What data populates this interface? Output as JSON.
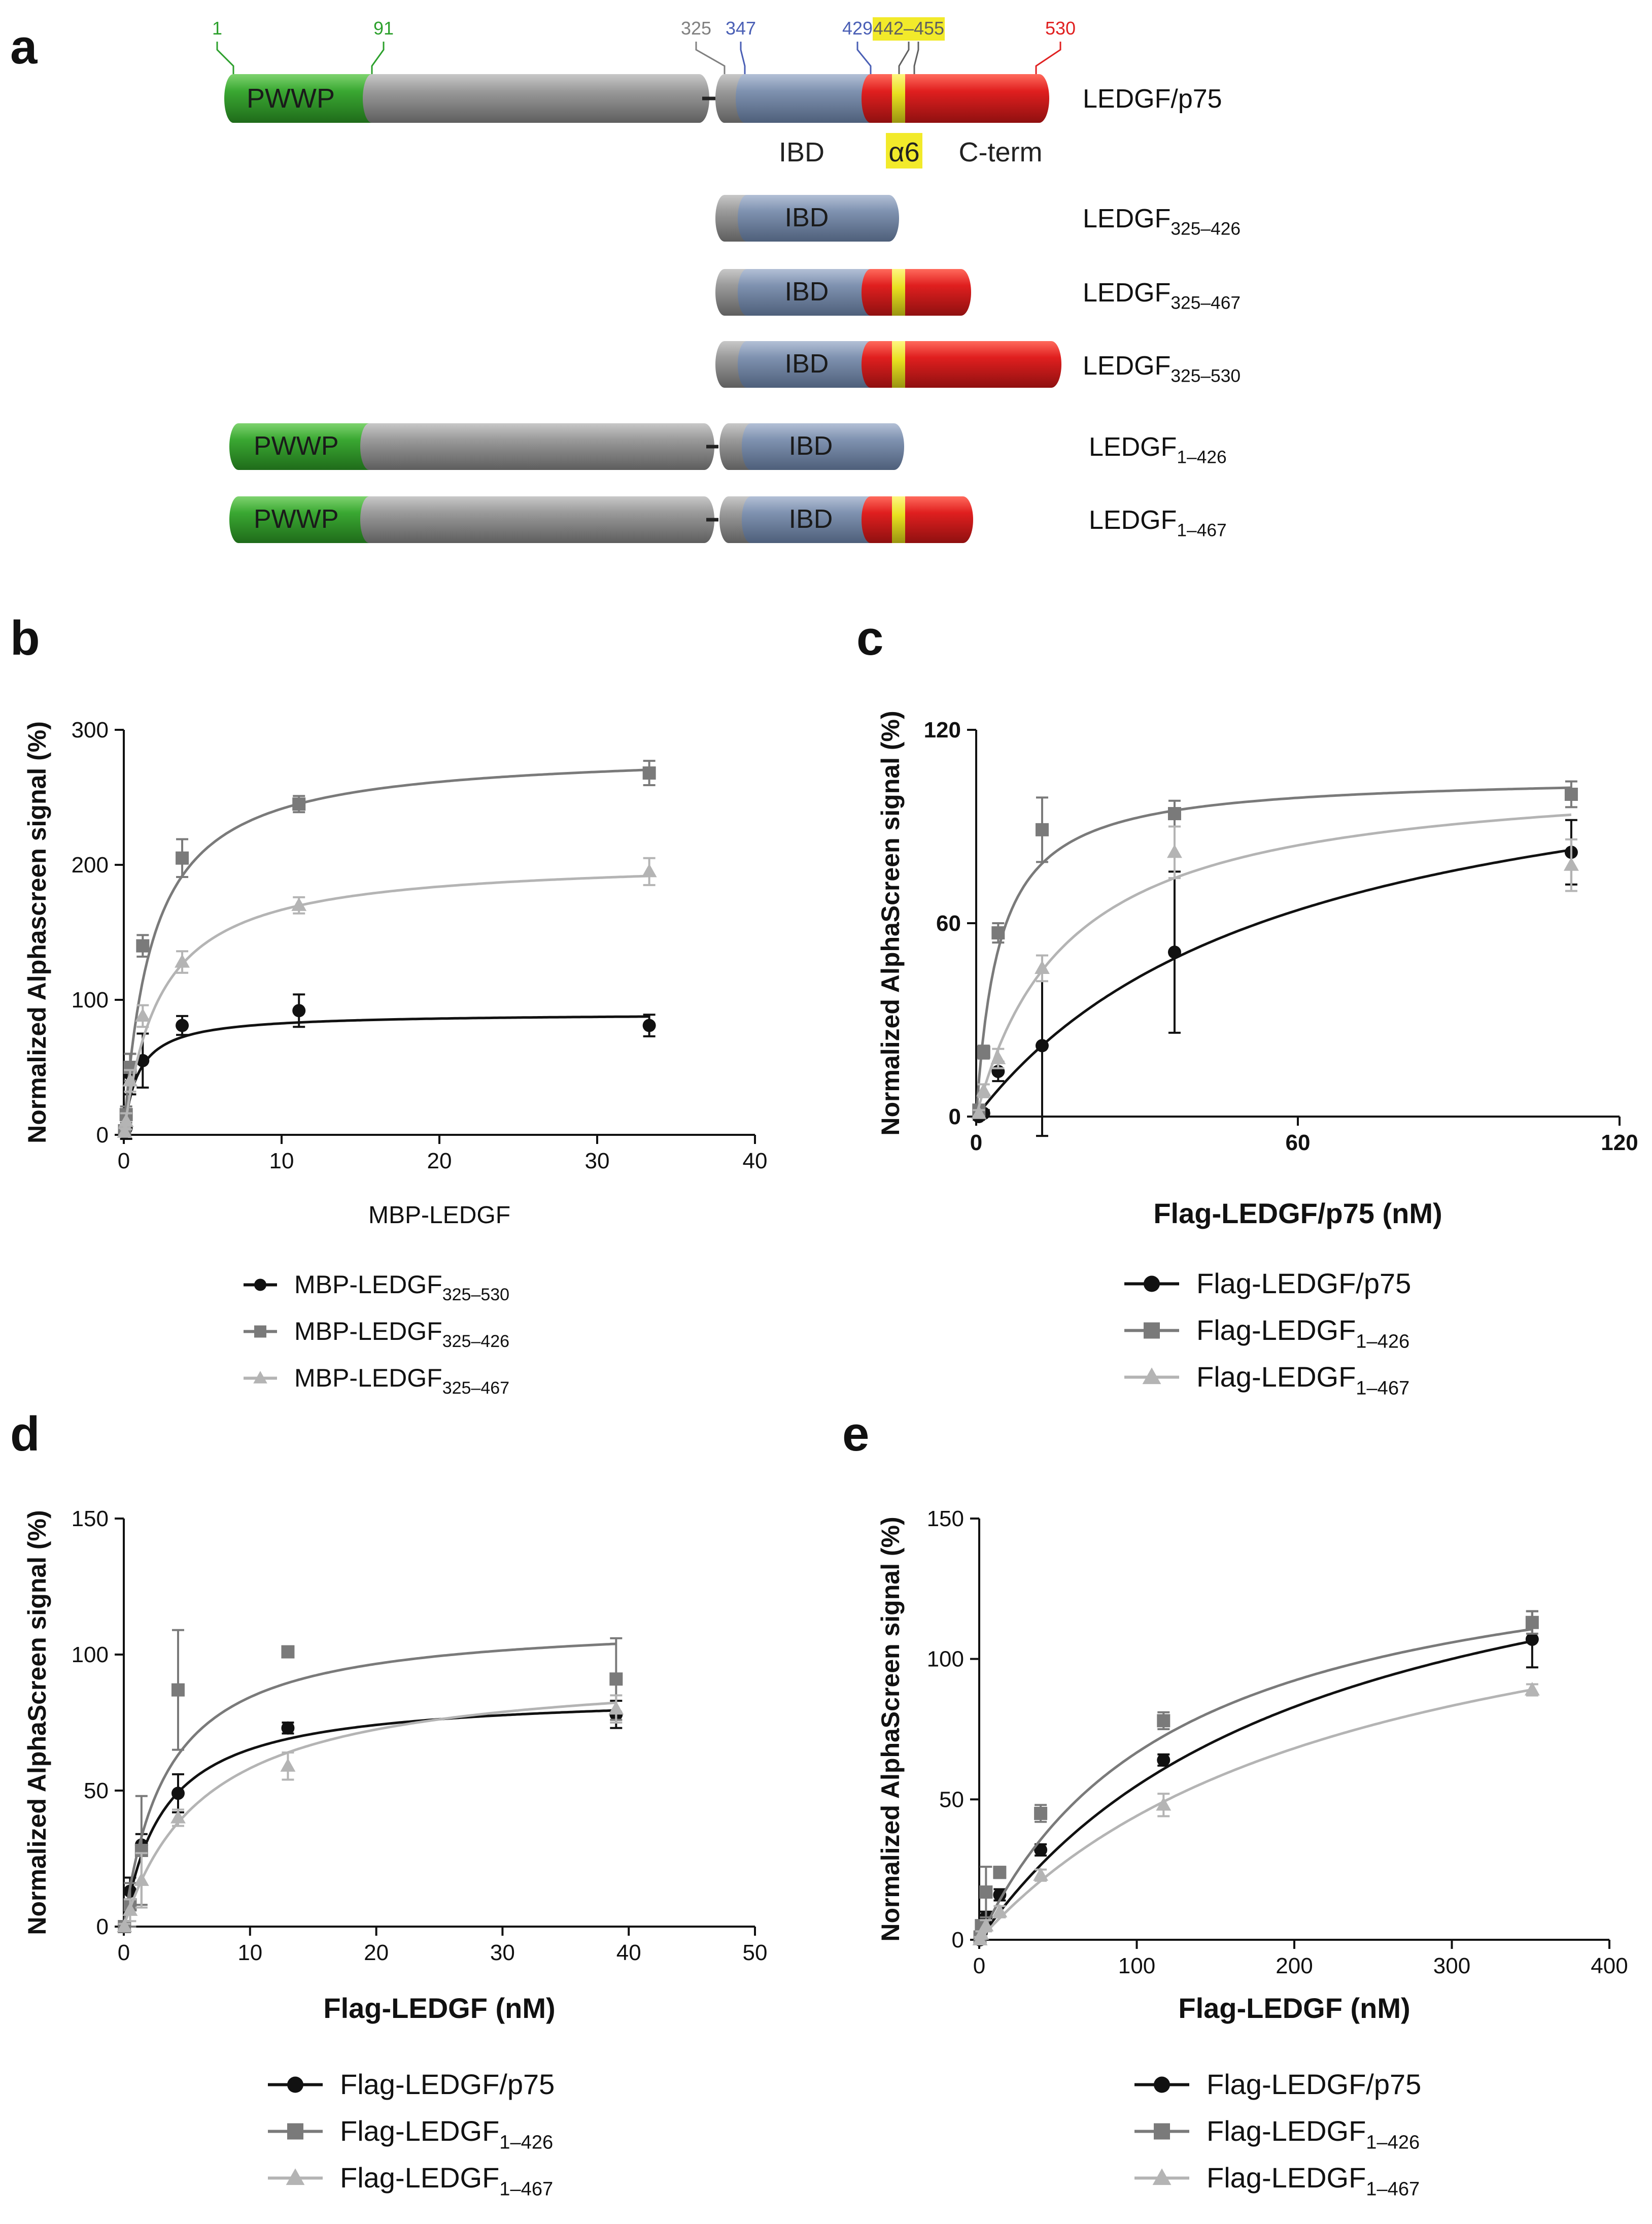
{
  "panel_a": {
    "label": "a",
    "markers": [
      {
        "text": "1",
        "color": "#2ca02c"
      },
      {
        "text": "91",
        "color": "#2ca02c"
      },
      {
        "text": "325",
        "color": "#808080"
      },
      {
        "text": "347",
        "color": "#4a5fb5"
      },
      {
        "text": "429",
        "color": "#4a5fb5"
      },
      {
        "text": "442–455",
        "color": "#606060"
      },
      {
        "text": "530",
        "color": "#e02020"
      }
    ],
    "domain_labels": {
      "pwwp": "PWWP",
      "ibd": "IBD",
      "alpha6": "α6",
      "cterm": "C-term"
    },
    "constructs": [
      {
        "name": "LEDGF/p75",
        "sub": ""
      },
      {
        "name": "LEDGF",
        "sub": "325–426"
      },
      {
        "name": "LEDGF",
        "sub": "325–467"
      },
      {
        "name": "LEDGF",
        "sub": "325–530"
      },
      {
        "name": "LEDGF",
        "sub": "1–426"
      },
      {
        "name": "LEDGF",
        "sub": "1–467"
      }
    ],
    "colors": {
      "pwwp": "#3aa832",
      "linker": "#9a9a9a",
      "ibd": "#7f92b0",
      "cterm": "#e01f1f",
      "alpha6": "#e8e020",
      "highlight": "#f2ea2a"
    }
  },
  "chart_data": [
    {
      "panel": "b",
      "type": "scatter",
      "xlabel": "MBP-LEDGF",
      "ylabel": "Normalized Alphascreen signal (%)",
      "xlim": [
        0,
        40
      ],
      "ylim": [
        0,
        300
      ],
      "xticks": [
        0,
        10,
        20,
        30,
        40
      ],
      "yticks": [
        0,
        100,
        200,
        300
      ],
      "series": [
        {
          "name": "MBP-LEDGF",
          "sub": "325–530",
          "color": "#111111",
          "marker": "circle",
          "x": [
            0.05,
            0.15,
            0.4,
            1.2,
            3.7,
            11.1,
            33.3
          ],
          "y": [
            2,
            5,
            45,
            55,
            81,
            92,
            81
          ],
          "err": [
            3,
            8,
            15,
            20,
            7,
            12,
            8
          ],
          "fit": {
            "bmax": 90,
            "kd": 0.9
          }
        },
        {
          "name": "MBP-LEDGF",
          "sub": "325–426",
          "color": "#7a7a7a",
          "marker": "square",
          "x": [
            0.05,
            0.15,
            0.4,
            1.2,
            3.7,
            11.1,
            33.3
          ],
          "y": [
            3,
            15,
            50,
            140,
            205,
            245,
            268
          ],
          "err": [
            3,
            6,
            10,
            8,
            14,
            6,
            9
          ],
          "fit": {
            "bmax": 285,
            "kd": 1.8
          }
        },
        {
          "name": "MBP-LEDGF",
          "sub": "325–467",
          "color": "#b4b4b4",
          "marker": "triangle",
          "x": [
            0.05,
            0.15,
            0.4,
            1.2,
            3.7,
            11.1,
            33.3
          ],
          "y": [
            2,
            10,
            40,
            88,
            128,
            170,
            195
          ],
          "err": [
            3,
            6,
            8,
            8,
            8,
            6,
            10
          ],
          "fit": {
            "bmax": 205,
            "kd": 2.3
          }
        }
      ]
    },
    {
      "panel": "c",
      "type": "scatter",
      "xlabel": "Flag-LEDGF/p75 (nM)",
      "ylabel": "Normalized AlphaScreen signal (%)",
      "xlim": [
        0,
        120
      ],
      "ylim": [
        0,
        120
      ],
      "xticks": [
        0,
        60,
        120
      ],
      "yticks": [
        0,
        60,
        120
      ],
      "series": [
        {
          "name": "Flag-LEDGF/p75",
          "sub": "",
          "color": "#111111",
          "marker": "circle",
          "x": [
            0.5,
            1.4,
            4.1,
            12.3,
            37,
            111
          ],
          "y": [
            0,
            1,
            14,
            22,
            51,
            82
          ],
          "err": [
            1,
            1,
            3,
            28,
            25,
            10
          ],
          "fit": {
            "bmax": 126,
            "kd": 58
          }
        },
        {
          "name": "Flag-LEDGF",
          "sub": "1–426",
          "color": "#7a7a7a",
          "marker": "square",
          "x": [
            0.5,
            1.4,
            4.1,
            12.3,
            37,
            111
          ],
          "y": [
            2,
            20,
            57,
            89,
            94,
            100
          ],
          "err": [
            1,
            2,
            3,
            10,
            4,
            4
          ],
          "fit": {
            "bmax": 106,
            "kd": 4.3
          }
        },
        {
          "name": "Flag-LEDGF",
          "sub": "1–467",
          "color": "#b4b4b4",
          "marker": "triangle",
          "x": [
            0.5,
            1.4,
            4.1,
            12.3,
            37,
            111
          ],
          "y": [
            1,
            8,
            18,
            46,
            82,
            78
          ],
          "err": [
            1,
            2,
            3,
            4,
            8,
            8
          ],
          "fit": {
            "bmax": 108,
            "kd": 17
          }
        }
      ]
    },
    {
      "panel": "d",
      "type": "scatter",
      "xlabel": "Flag-LEDGF (nM)",
      "ylabel": "Normalized AlphaScreen signal (%)",
      "xlim": [
        0,
        50
      ],
      "ylim": [
        0,
        150
      ],
      "xticks": [
        0,
        10,
        20,
        30,
        40,
        50
      ],
      "yticks": [
        0,
        50,
        100,
        150
      ],
      "series": [
        {
          "name": "Flag-LEDGF/p75",
          "sub": "",
          "color": "#111111",
          "marker": "circle",
          "x": [
            0.05,
            0.5,
            1.4,
            4.3,
            13,
            39
          ],
          "y": [
            0,
            13,
            30,
            49,
            73,
            78
          ],
          "err": [
            1,
            5,
            4,
            7,
            2,
            5
          ],
          "fit": {
            "bmax": 86,
            "kd": 3.2
          }
        },
        {
          "name": "Flag-LEDGF",
          "sub": "1–426",
          "color": "#7a7a7a",
          "marker": "square",
          "x": [
            0.05,
            0.5,
            1.4,
            4.3,
            13,
            39
          ],
          "y": [
            0,
            8,
            28,
            87,
            101,
            91
          ],
          "err": [
            1,
            8,
            20,
            22,
            2,
            15
          ],
          "fit": {
            "bmax": 113,
            "kd": 3.4
          }
        },
        {
          "name": "Flag-LEDGF",
          "sub": "1–467",
          "color": "#b4b4b4",
          "marker": "triangle",
          "x": [
            0.05,
            0.5,
            1.4,
            4.3,
            13,
            39
          ],
          "y": [
            0,
            6,
            17,
            40,
            59,
            80
          ],
          "err": [
            1,
            4,
            10,
            3,
            5,
            5
          ],
          "fit": {
            "bmax": 96,
            "kd": 6.5
          }
        }
      ]
    },
    {
      "panel": "e",
      "type": "scatter",
      "xlabel": "Flag-LEDGF (nM)",
      "ylabel": "Normalized AlphaScreen signal (%)",
      "xlim": [
        0,
        400
      ],
      "ylim": [
        0,
        150
      ],
      "xticks": [
        0,
        100,
        200,
        300,
        400
      ],
      "yticks": [
        0,
        50,
        100,
        150
      ],
      "series": [
        {
          "name": "Flag-LEDGF/p75",
          "sub": "",
          "color": "#111111",
          "marker": "circle",
          "x": [
            0.5,
            1.4,
            4.3,
            13,
            39,
            117,
            351
          ],
          "y": [
            0,
            3,
            8,
            16,
            32,
            64,
            107
          ],
          "err": [
            1,
            1,
            2,
            2,
            2,
            2,
            10
          ],
          "fit": {
            "bmax": 170,
            "kd": 210
          }
        },
        {
          "name": "Flag-LEDGF",
          "sub": "1–426",
          "color": "#7a7a7a",
          "marker": "square",
          "x": [
            0.5,
            1.4,
            4.3,
            13,
            39,
            117,
            351
          ],
          "y": [
            1,
            5,
            17,
            24,
            45,
            78,
            113
          ],
          "err": [
            1,
            2,
            9,
            2,
            3,
            3,
            4
          ],
          "fit": {
            "bmax": 150,
            "kd": 125
          }
        },
        {
          "name": "Flag-LEDGF",
          "sub": "1–467",
          "color": "#b4b4b4",
          "marker": "triangle",
          "x": [
            0.5,
            1.4,
            4.3,
            13,
            39,
            117,
            351
          ],
          "y": [
            0,
            2,
            5,
            10,
            23,
            48,
            89
          ],
          "err": [
            1,
            1,
            2,
            2,
            2,
            4,
            2
          ],
          "fit": {
            "bmax": 150,
            "kd": 240
          }
        }
      ]
    }
  ]
}
